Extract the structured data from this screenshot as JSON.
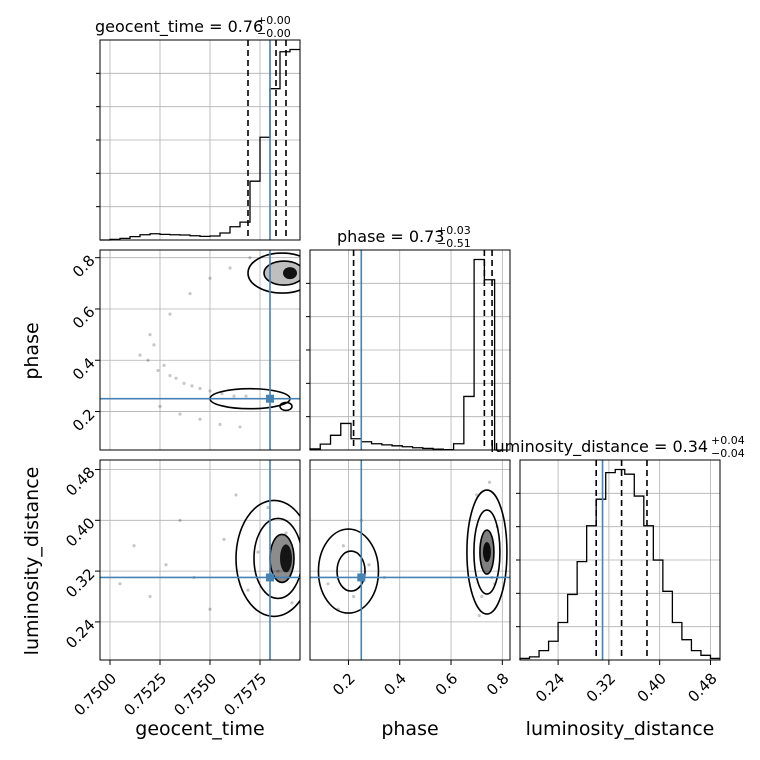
{
  "chart_data": {
    "type": "scatter",
    "colors": {
      "truth": "#4682b4",
      "contour": "#000000",
      "samples": "#000000",
      "grid": "#b0b0b0"
    },
    "grid": true,
    "parameters": [
      {
        "name": "geocent_time",
        "xlabel": "geocent_time",
        "range": [
          0.7495,
          0.7595
        ],
        "ticks": [
          0.75,
          0.7525,
          0.755,
          0.7575
        ],
        "tick_labels": [
          "0.7500",
          "0.7525",
          "0.7550",
          "0.7575"
        ],
        "truth": 0.758,
        "quantiles": [
          0.7569,
          0.7583,
          0.7588
        ],
        "title_main": "geocent_time = 0.76",
        "title_sup": "+0.00",
        "title_sub": "−0.00"
      },
      {
        "name": "phase",
        "ylabel": "phase",
        "xlabel": "phase",
        "range": [
          0.05,
          0.83
        ],
        "ticks": [
          0.2,
          0.4,
          0.6,
          0.8
        ],
        "tick_labels": [
          "0.2",
          "0.4",
          "0.6",
          "0.8"
        ],
        "truth": 0.25,
        "quantiles": [
          0.22,
          0.73,
          0.76
        ],
        "title_main": "phase = 0.73",
        "title_sup": "+0.03",
        "title_sub": "−0.51"
      },
      {
        "name": "luminosity_distance",
        "ylabel": "luminosity_distance",
        "xlabel": "luminosity_distance",
        "range": [
          0.18,
          0.495
        ],
        "ticks": [
          0.24,
          0.32,
          0.4,
          0.48
        ],
        "tick_labels": [
          "0.24",
          "0.32",
          "0.40",
          "0.48"
        ],
        "truth": 0.31,
        "quantiles": [
          0.3,
          0.34,
          0.38
        ],
        "title_main": "luminosity_distance = 0.34",
        "title_sup": "+0.04",
        "title_sub": "−0.04"
      }
    ],
    "hist_geocent_time": {
      "edges": [
        0.7495,
        0.75,
        0.7505,
        0.751,
        0.7515,
        0.752,
        0.7525,
        0.753,
        0.7535,
        0.754,
        0.7545,
        0.755,
        0.7555,
        0.756,
        0.7565,
        0.757,
        0.7575,
        0.758,
        0.7585,
        0.759,
        0.7595
      ],
      "counts": [
        0.0,
        0.3,
        0.8,
        1.7,
        2.6,
        3.1,
        2.8,
        2.6,
        2.5,
        2.1,
        1.8,
        2.0,
        3.5,
        6.6,
        8.9,
        29.3,
        51.2,
        75.4,
        93.8,
        94.9
      ]
    },
    "hist_phase": {
      "edges": [
        0.05,
        0.09,
        0.13,
        0.17,
        0.21,
        0.25,
        0.29,
        0.33,
        0.37,
        0.41,
        0.45,
        0.49,
        0.53,
        0.57,
        0.61,
        0.65,
        0.69,
        0.73,
        0.77,
        0.81
      ],
      "counts": [
        0.9,
        4.9,
        12.3,
        22.2,
        9.4,
        6.9,
        5.2,
        4.3,
        3.5,
        2.7,
        1.9,
        1.3,
        0.7,
        0.3,
        5.2,
        44.8,
        159.3,
        142.4,
        0.0
      ]
    },
    "hist_luminosity_distance": {
      "edges": [
        0.18,
        0.195,
        0.21,
        0.225,
        0.24,
        0.255,
        0.27,
        0.285,
        0.3,
        0.315,
        0.33,
        0.345,
        0.36,
        0.375,
        0.39,
        0.405,
        0.42,
        0.435,
        0.45,
        0.465,
        0.48,
        0.495
      ],
      "counts": [
        1,
        2,
        6,
        12,
        24,
        42,
        63,
        86,
        103,
        120,
        122,
        119,
        105,
        86,
        64,
        44,
        24,
        13,
        6,
        3,
        1
      ]
    },
    "samples_phase_vs_geocent_time": [
      {
        "x": 0.7515,
        "y": 0.42
      },
      {
        "x": 0.7519,
        "y": 0.4
      },
      {
        "x": 0.7522,
        "y": 0.46
      },
      {
        "x": 0.7524,
        "y": 0.36
      },
      {
        "x": 0.7527,
        "y": 0.38
      },
      {
        "x": 0.753,
        "y": 0.34
      },
      {
        "x": 0.7533,
        "y": 0.33
      },
      {
        "x": 0.7537,
        "y": 0.31
      },
      {
        "x": 0.7541,
        "y": 0.3
      },
      {
        "x": 0.7545,
        "y": 0.29
      },
      {
        "x": 0.755,
        "y": 0.28
      },
      {
        "x": 0.7556,
        "y": 0.27
      },
      {
        "x": 0.7562,
        "y": 0.26
      },
      {
        "x": 0.7568,
        "y": 0.26
      },
      {
        "x": 0.752,
        "y": 0.5
      },
      {
        "x": 0.753,
        "y": 0.58
      },
      {
        "x": 0.754,
        "y": 0.66
      },
      {
        "x": 0.755,
        "y": 0.72
      },
      {
        "x": 0.756,
        "y": 0.76
      },
      {
        "x": 0.757,
        "y": 0.8
      },
      {
        "x": 0.7545,
        "y": 0.17
      },
      {
        "x": 0.7555,
        "y": 0.15
      },
      {
        "x": 0.7565,
        "y": 0.14
      },
      {
        "x": 0.7535,
        "y": 0.19
      },
      {
        "x": 0.7525,
        "y": 0.22
      }
    ],
    "samples_luminosity_distance_vs_geocent_time": [
      {
        "x": 0.7505,
        "y": 0.3
      },
      {
        "x": 0.7512,
        "y": 0.36
      },
      {
        "x": 0.752,
        "y": 0.28
      },
      {
        "x": 0.7528,
        "y": 0.33
      },
      {
        "x": 0.7535,
        "y": 0.4
      },
      {
        "x": 0.7542,
        "y": 0.31
      },
      {
        "x": 0.755,
        "y": 0.26
      },
      {
        "x": 0.7557,
        "y": 0.37
      },
      {
        "x": 0.7563,
        "y": 0.44
      },
      {
        "x": 0.7569,
        "y": 0.29
      },
      {
        "x": 0.7574,
        "y": 0.35
      },
      {
        "x": 0.7579,
        "y": 0.42
      },
      {
        "x": 0.7584,
        "y": 0.32
      },
      {
        "x": 0.7588,
        "y": 0.38
      },
      {
        "x": 0.7591,
        "y": 0.27
      }
    ],
    "samples_luminosity_distance_vs_phase": [
      {
        "x": 0.12,
        "y": 0.3
      },
      {
        "x": 0.18,
        "y": 0.36
      },
      {
        "x": 0.22,
        "y": 0.28
      },
      {
        "x": 0.28,
        "y": 0.33
      },
      {
        "x": 0.34,
        "y": 0.31
      },
      {
        "x": 0.16,
        "y": 0.26
      },
      {
        "x": 0.25,
        "y": 0.4
      },
      {
        "x": 0.7,
        "y": 0.44
      },
      {
        "x": 0.72,
        "y": 0.28
      },
      {
        "x": 0.74,
        "y": 0.35
      },
      {
        "x": 0.76,
        "y": 0.31
      },
      {
        "x": 0.78,
        "y": 0.39
      },
      {
        "x": 0.71,
        "y": 0.25
      },
      {
        "x": 0.75,
        "y": 0.46
      },
      {
        "x": 0.77,
        "y": 0.3
      }
    ]
  }
}
